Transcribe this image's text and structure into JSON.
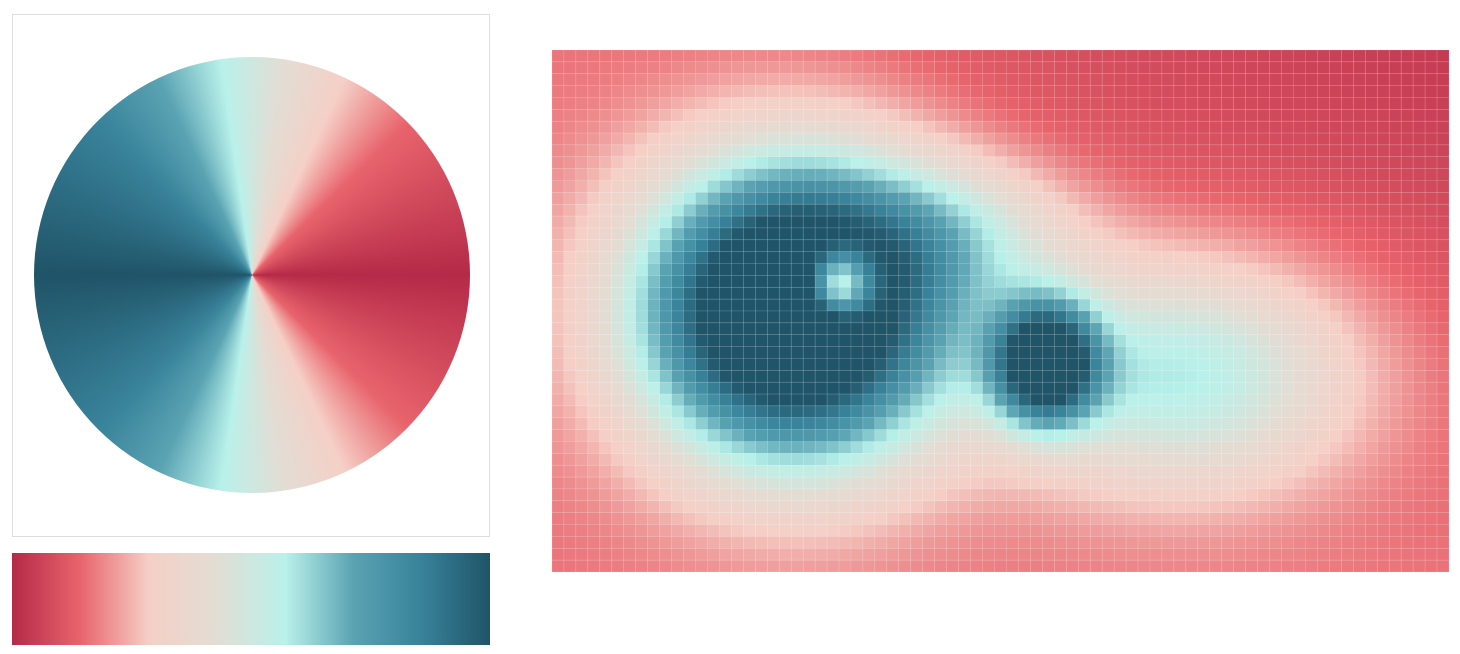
{
  "colormap": [
    "#b52a48",
    "#e8646c",
    "#f5cfc6",
    "#e2ddd4",
    "#b9f1ea",
    "#5aa3b3",
    "#38829a",
    "#205468"
  ]
}
